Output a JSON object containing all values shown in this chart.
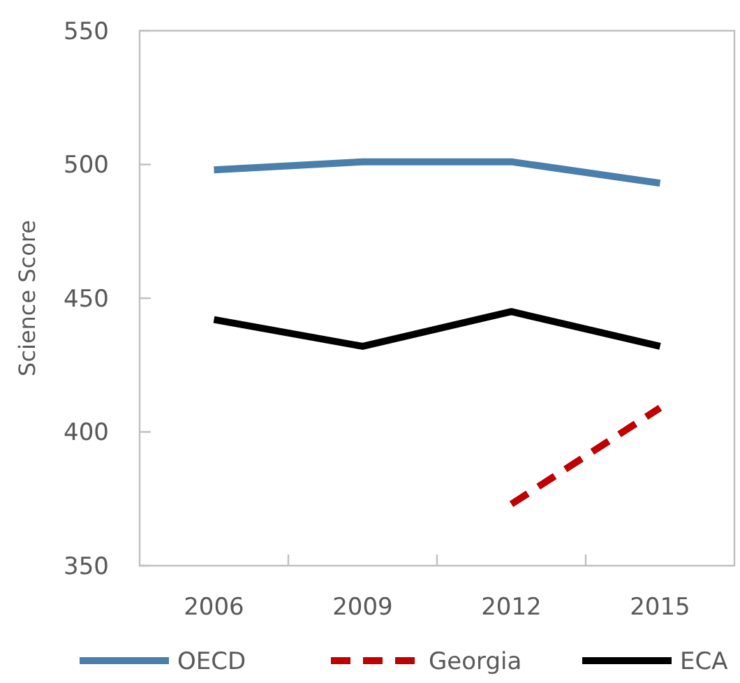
{
  "chart_data": {
    "type": "line",
    "ylabel": "Science Score",
    "categories": [
      "2006",
      "2009",
      "2012",
      "2015"
    ],
    "ylim": [
      350,
      550
    ],
    "yticks": [
      350,
      400,
      450,
      500,
      550
    ],
    "grid": false,
    "legend": "bottom",
    "marker": "none",
    "series": [
      {
        "name": "OECD",
        "color": "#4a7eab",
        "values": [
          498,
          501,
          501,
          493
        ]
      },
      {
        "name": "Georgia",
        "color": "#c00000",
        "values": [
          null,
          null,
          373,
          409
        ],
        "line_style": "dashed"
      },
      {
        "name": "ECA",
        "color": "#000000",
        "values": [
          442,
          432,
          445,
          432
        ]
      }
    ]
  }
}
